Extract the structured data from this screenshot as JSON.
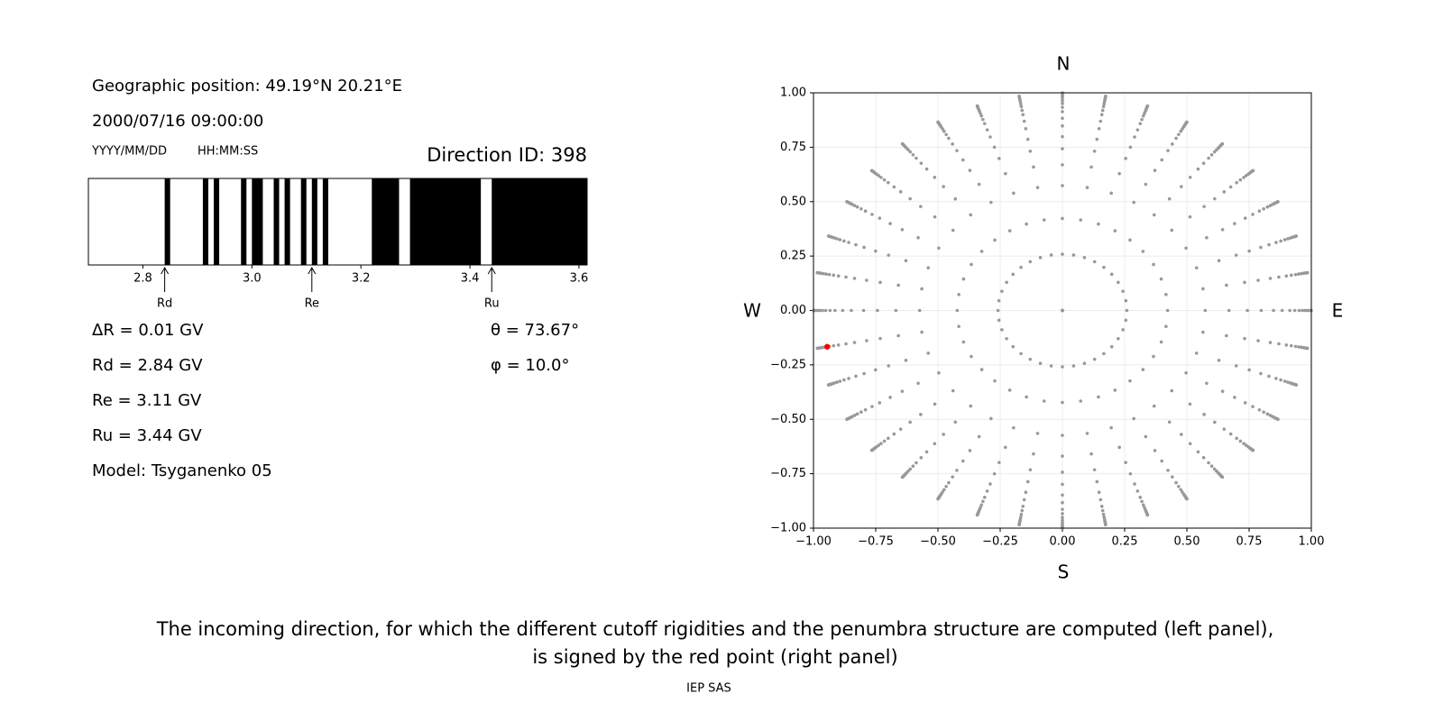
{
  "chart_data": [
    {
      "type": "penumbra",
      "position": "Geographic position: 49.19°N 20.21°E",
      "datetime": "2000/07/16 09:00:00",
      "date_format": "YYYY/MM/DD",
      "time_format": "HH:MM:SS",
      "direction_id": "Direction ID: 398",
      "xlim": [
        2.7,
        3.615
      ],
      "xticks": [
        2.8,
        {
          "value": 3.0,
          "label": "3.0"
        },
        3.2,
        3.4,
        3.6
      ],
      "color": "#000000",
      "bands": [
        [
          2.84,
          2.85
        ],
        [
          2.91,
          2.92
        ],
        [
          2.93,
          2.94
        ],
        [
          2.98,
          2.99
        ],
        [
          3.0,
          3.02
        ],
        [
          3.04,
          3.05
        ],
        [
          3.06,
          3.07
        ],
        [
          3.09,
          3.1
        ],
        [
          3.11,
          3.12
        ],
        [
          3.13,
          3.14
        ],
        [
          3.22,
          3.27
        ],
        [
          3.29,
          3.42
        ],
        [
          3.44,
          3.615
        ]
      ],
      "markers": [
        {
          "label": "Rd",
          "value": 2.84
        },
        {
          "label": "Re",
          "value": 3.11
        },
        {
          "label": "Ru",
          "value": 3.44
        }
      ],
      "stats": [
        "ΔR = 0.01 GV",
        "Rd = 2.84 GV",
        "Re = 3.11 GV",
        "Ru = 3.44 GV",
        "Model: Tsyganenko 05"
      ],
      "angles": [
        "θ = 73.67°",
        "φ = 10.0°"
      ]
    },
    {
      "type": "direction-scatter",
      "compass": {
        "N": "N",
        "E": "E",
        "S": "S",
        "W": "W"
      },
      "xlim": [
        -1,
        1
      ],
      "ylim": [
        -1,
        1
      ],
      "xticks": [
        {
          "value": -1,
          "label": "−1.00"
        },
        {
          "value": -0.75,
          "label": "−0.75"
        },
        {
          "value": -0.5,
          "label": "−0.50"
        },
        {
          "value": -0.25,
          "label": "−0.25"
        },
        {
          "value": 0,
          "label": "0.00"
        },
        {
          "value": 0.25,
          "label": "0.25"
        },
        {
          "value": 0.5,
          "label": "0.50"
        },
        {
          "value": 0.75,
          "label": "0.75"
        },
        {
          "value": 1,
          "label": "1.00"
        }
      ],
      "yticks": [
        {
          "value": -1,
          "label": "−1.00"
        },
        {
          "value": -0.75,
          "label": "−0.75"
        },
        {
          "value": -0.5,
          "label": "−0.50"
        },
        {
          "value": -0.25,
          "label": "−0.25"
        },
        {
          "value": 0,
          "label": "0.00"
        },
        {
          "value": 0.25,
          "label": "0.25"
        },
        {
          "value": 0.5,
          "label": "0.50"
        },
        {
          "value": 0.75,
          "label": "0.75"
        },
        {
          "value": 1,
          "label": "1.00"
        }
      ],
      "grid": true,
      "color": "#999999",
      "zenith": [
        0,
        15,
        25,
        35,
        42,
        48,
        53,
        58,
        62,
        66,
        69,
        72,
        74.5,
        77,
        79,
        81,
        83,
        85,
        87,
        89
      ],
      "azimuth": [
        0,
        10,
        20,
        30,
        40,
        50,
        60,
        70,
        80,
        90,
        100,
        110,
        120,
        130,
        140,
        150,
        160,
        170,
        180,
        190,
        200,
        210,
        220,
        230,
        240,
        250,
        260,
        270,
        280,
        290,
        300,
        310,
        320,
        330,
        340,
        350
      ],
      "selected": {
        "zenith": 73.67,
        "azimuth": 10.0,
        "color": "#ff0000"
      }
    }
  ],
  "caption": [
    "The incoming direction, for which the different cutoff rigidities and the penumbra structure are computed (left panel),",
    "is signed by the red point (right panel)"
  ],
  "footer": "IEP SAS"
}
